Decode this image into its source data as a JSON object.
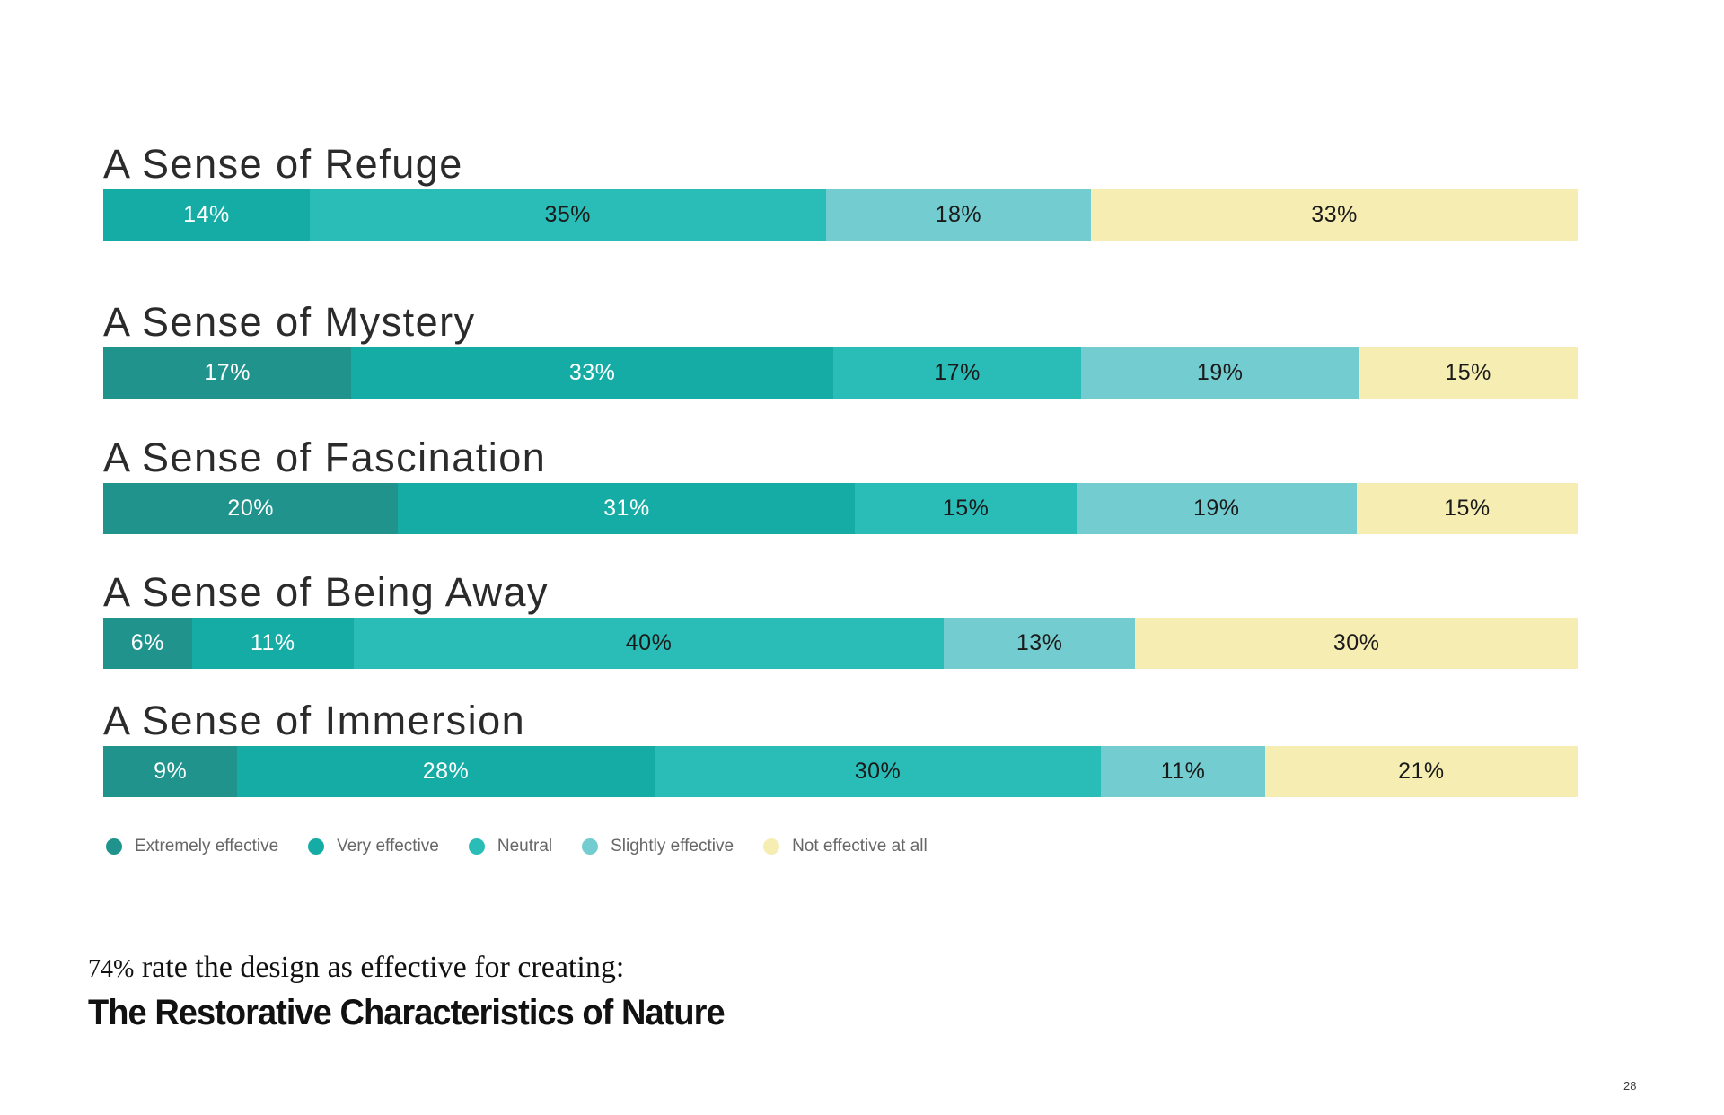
{
  "page": {
    "background": "#FFFFFF",
    "page_number": "28"
  },
  "chart_data": {
    "type": "bar",
    "orientation": "horizontal-stacked",
    "unit": "%",
    "value_label_format": "{v}%",
    "categories": [
      "Extremely effective",
      "Very effective",
      "Neutral",
      "Slightly effective",
      "Not effective at all"
    ],
    "colors": [
      "#20938D",
      "#14ACA5",
      "#2ABDB8",
      "#73CCCF",
      "#F5EDB1"
    ],
    "value_label_text_colors": [
      "#FFFFFF",
      "#FFFFFF",
      "#1A1A1A",
      "#1A1A1A",
      "#1A1A1A"
    ],
    "rows": [
      {
        "label": "A Sense of Refuge",
        "values": [
          0,
          14,
          35,
          18,
          33
        ]
      },
      {
        "label": "A Sense of Mystery",
        "values": [
          17,
          33,
          17,
          19,
          15
        ]
      },
      {
        "label": "A Sense of Fascination",
        "values": [
          20,
          31,
          15,
          19,
          15
        ]
      },
      {
        "label": "A Sense of Being Away",
        "values": [
          6,
          11,
          40,
          13,
          30
        ]
      },
      {
        "label": "A Sense of Immersion",
        "values": [
          9,
          28,
          30,
          11,
          21
        ]
      }
    ],
    "legend_position": "bottom-left",
    "grid": false,
    "title_color": "#2B2B2B",
    "legend_text_color": "#666666"
  },
  "footer": {
    "stat_value": "74%",
    "stat_text": " rate the design as effective for creating:",
    "headline": "The Restorative Characteristics of Nature"
  }
}
